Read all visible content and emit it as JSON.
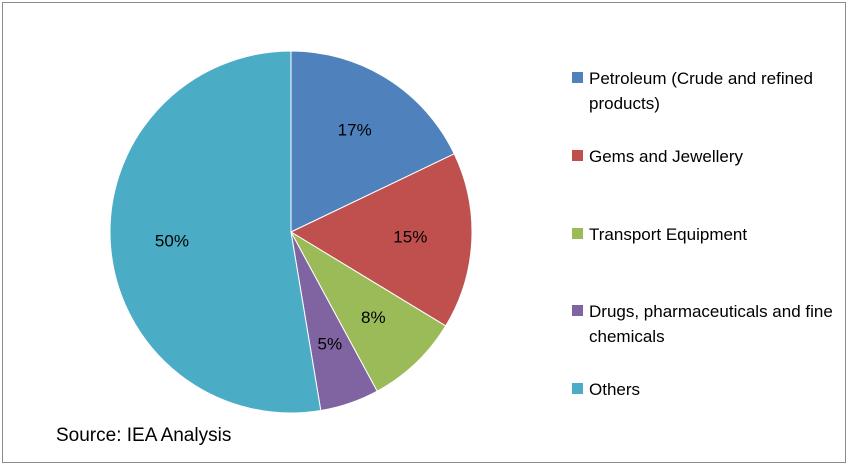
{
  "chart_data": {
    "type": "pie",
    "categories": [
      "Petroleum (Crude and refined products)",
      "Gems and Jewellery",
      "Transport Equipment",
      "Drugs, pharmaceuticals and fine chemicals",
      "Others"
    ],
    "values": [
      17,
      15,
      8,
      5,
      50
    ],
    "labels": [
      "17%",
      "15%",
      "8%",
      "5%",
      "50%"
    ],
    "colors": [
      "#4F81BD",
      "#C0504D",
      "#9BBB59",
      "#8064A2",
      "#4BACC6"
    ],
    "start": "12 o'clock",
    "direction": "clockwise",
    "legend": "right"
  },
  "source": "Source: IEA Analysis"
}
